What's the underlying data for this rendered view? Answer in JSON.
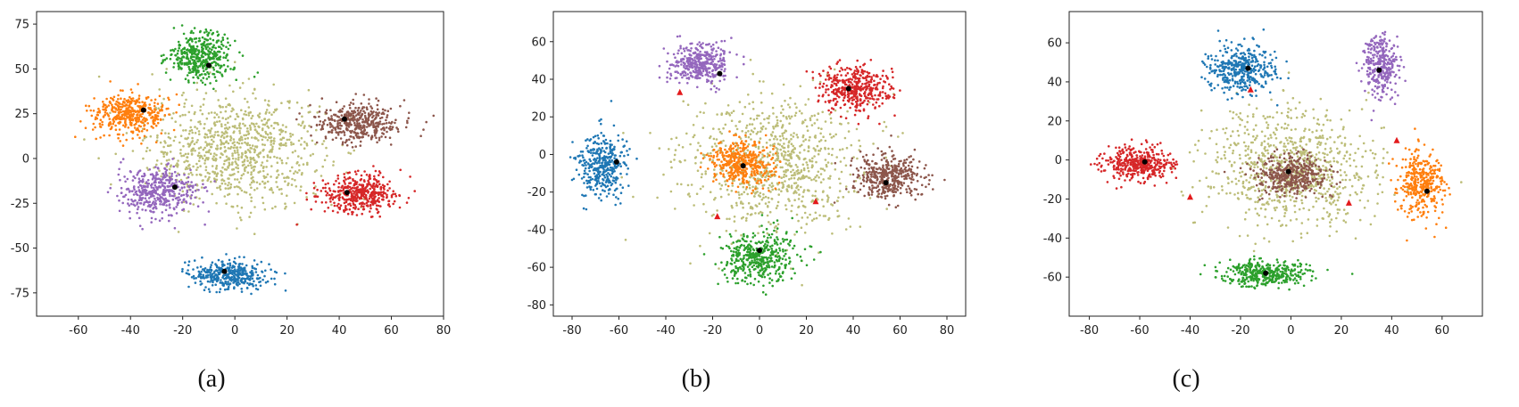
{
  "chart_data": [
    {
      "type": "scatter",
      "subtitle": "(a)",
      "xlim": [
        -76,
        80
      ],
      "ylim": [
        -88,
        82
      ],
      "xticks": [
        -60,
        -40,
        -20,
        0,
        20,
        40,
        60,
        80
      ],
      "yticks": [
        -75,
        -50,
        -25,
        0,
        25,
        50,
        75
      ],
      "xtick_labels": [
        "-60",
        "-40",
        "-20",
        "0",
        "20",
        "40",
        "60",
        "80"
      ],
      "ytick_labels": [
        "-75",
        "-50",
        "-25",
        "0",
        "25",
        "50",
        "75"
      ],
      "grid": false,
      "clusters": [
        {
          "color": "#2ca02c",
          "center": [
            -13,
            57
          ],
          "spread": [
            11,
            12
          ],
          "n": 420
        },
        {
          "color": "#ff7f0e",
          "center": [
            -40,
            25
          ],
          "spread": [
            13,
            10
          ],
          "n": 420
        },
        {
          "color": "#8c564b",
          "center": [
            47,
            20
          ],
          "spread": [
            14,
            10
          ],
          "n": 420
        },
        {
          "color": "#d62728",
          "center": [
            48,
            -20
          ],
          "spread": [
            14,
            10
          ],
          "n": 420
        },
        {
          "color": "#9467bd",
          "center": [
            -30,
            -18
          ],
          "spread": [
            14,
            11
          ],
          "n": 420
        },
        {
          "color": "#1f77b4",
          "center": [
            -2,
            -65
          ],
          "spread": [
            14,
            7
          ],
          "n": 380
        },
        {
          "color": "#bcbd78",
          "center": [
            0,
            5
          ],
          "spread": [
            30,
            28
          ],
          "n": 900
        }
      ],
      "centroids": [
        [
          -10,
          52
        ],
        [
          -35,
          27
        ],
        [
          42,
          22
        ],
        [
          43,
          -19
        ],
        [
          -23,
          -16
        ],
        [
          -4,
          -63
        ]
      ],
      "red_markers": [],
      "centroid_color": "#000000",
      "marker_color": "#e31a1c"
    },
    {
      "type": "scatter",
      "subtitle": "(b)",
      "xlim": [
        -88,
        88
      ],
      "ylim": [
        -86,
        76
      ],
      "xticks": [
        -80,
        -60,
        -40,
        -20,
        0,
        20,
        40,
        60,
        80
      ],
      "yticks": [
        -80,
        -60,
        -40,
        -20,
        0,
        20,
        40,
        60
      ],
      "xtick_labels": [
        "-80",
        "-60",
        "-40",
        "-20",
        "0",
        "20",
        "40",
        "60",
        "80"
      ],
      "ytick_labels": [
        "-80",
        "-60",
        "-40",
        "-20",
        "0",
        "20",
        "40",
        "60"
      ],
      "grid": false,
      "clusters": [
        {
          "color": "#9467bd",
          "center": [
            -25,
            48
          ],
          "spread": [
            12,
            10
          ],
          "n": 380
        },
        {
          "color": "#d62728",
          "center": [
            40,
            35
          ],
          "spread": [
            14,
            11
          ],
          "n": 420
        },
        {
          "color": "#1f77b4",
          "center": [
            -67,
            -5
          ],
          "spread": [
            9,
            15
          ],
          "n": 380
        },
        {
          "color": "#ff7f0e",
          "center": [
            -8,
            -5
          ],
          "spread": [
            12,
            11
          ],
          "n": 400
        },
        {
          "color": "#8c564b",
          "center": [
            55,
            -12
          ],
          "spread": [
            13,
            10
          ],
          "n": 400
        },
        {
          "color": "#2ca02c",
          "center": [
            0,
            -55
          ],
          "spread": [
            14,
            12
          ],
          "n": 420
        },
        {
          "color": "#bcbd78",
          "center": [
            5,
            -5
          ],
          "spread": [
            35,
            32
          ],
          "n": 850
        }
      ],
      "centroids": [
        [
          -17,
          43
        ],
        [
          38,
          35
        ],
        [
          -61,
          -4
        ],
        [
          -7,
          -6
        ],
        [
          54,
          -15
        ],
        [
          0,
          -51
        ]
      ],
      "red_markers": [
        [
          -34,
          33
        ],
        [
          -18,
          -33
        ],
        [
          24,
          -25
        ]
      ],
      "centroid_color": "#000000",
      "marker_color": "#e31a1c"
    },
    {
      "type": "scatter",
      "subtitle": "(c)",
      "xlim": [
        -88,
        76
      ],
      "ylim": [
        -80,
        76
      ],
      "xticks": [
        -80,
        -60,
        -40,
        -20,
        0,
        20,
        40,
        60
      ],
      "yticks": [
        -60,
        -40,
        -20,
        0,
        20,
        40,
        60
      ],
      "xtick_labels": [
        "-80",
        "-60",
        "-40",
        "-20",
        "0",
        "20",
        "40",
        "60"
      ],
      "ytick_labels": [
        "-60",
        "-40",
        "-20",
        "0",
        "20",
        "40",
        "60"
      ],
      "grid": false,
      "clusters": [
        {
          "color": "#1f77b4",
          "center": [
            -20,
            47
          ],
          "spread": [
            12,
            11
          ],
          "n": 400
        },
        {
          "color": "#9467bd",
          "center": [
            36,
            48
          ],
          "spread": [
            6,
            15
          ],
          "n": 320
        },
        {
          "color": "#d62728",
          "center": [
            -60,
            -2
          ],
          "spread": [
            12,
            8
          ],
          "n": 400
        },
        {
          "color": "#8c564b",
          "center": [
            0,
            -8
          ],
          "spread": [
            13,
            9
          ],
          "n": 400
        },
        {
          "color": "#ff7f0e",
          "center": [
            52,
            -12
          ],
          "spread": [
            8,
            15
          ],
          "n": 380
        },
        {
          "color": "#2ca02c",
          "center": [
            -10,
            -58
          ],
          "spread": [
            15,
            6
          ],
          "n": 380
        },
        {
          "color": "#bcbd78",
          "center": [
            0,
            -5
          ],
          "spread": [
            30,
            28
          ],
          "n": 850
        }
      ],
      "centroids": [
        [
          -17,
          47
        ],
        [
          35,
          46
        ],
        [
          -58,
          -1
        ],
        [
          -1,
          -6
        ],
        [
          54,
          -16
        ],
        [
          -10,
          -58
        ]
      ],
      "red_markers": [
        [
          -16,
          36
        ],
        [
          42,
          10
        ],
        [
          -40,
          -19
        ],
        [
          23,
          -22
        ]
      ],
      "centroid_color": "#000000",
      "marker_color": "#e31a1c"
    }
  ]
}
